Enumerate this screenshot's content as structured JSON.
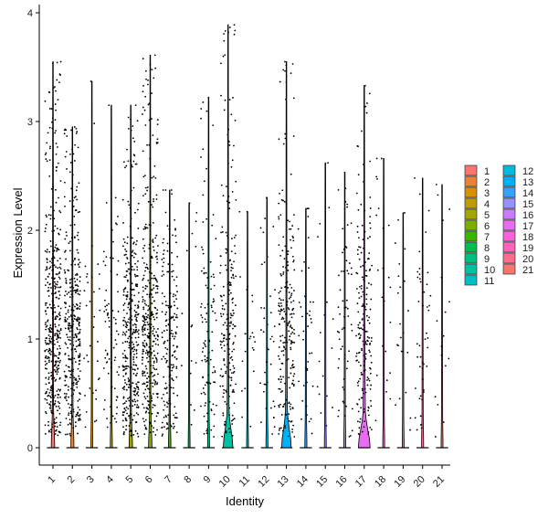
{
  "chart_data": {
    "type": "violin",
    "title": "",
    "xlabel": "Identity",
    "ylabel": "Expression Level",
    "ylim": [
      0,
      4
    ],
    "yticks": [
      "0",
      "1",
      "2",
      "3",
      "4"
    ],
    "categories": [
      "1",
      "2",
      "3",
      "4",
      "5",
      "6",
      "7",
      "8",
      "9",
      "10",
      "11",
      "12",
      "13",
      "14",
      "15",
      "16",
      "17",
      "18",
      "19",
      "20",
      "21"
    ],
    "max_values": [
      3.55,
      2.95,
      3.37,
      3.15,
      3.15,
      3.61,
      2.37,
      2.25,
      3.22,
      3.89,
      2.17,
      2.3,
      3.55,
      2.2,
      2.62,
      2.53,
      3.33,
      2.66,
      2.16,
      2.48,
      2.42
    ],
    "expressing_fraction": [
      0.72,
      0.58,
      0.05,
      0.12,
      0.62,
      0.64,
      0.3,
      0.02,
      0.18,
      0.35,
      0.03,
      0.06,
      0.38,
      0.06,
      0.02,
      0.1,
      0.32,
      0.03,
      0.03,
      0.07,
      0.02
    ],
    "violin_peak_width": [
      0.12,
      0.1,
      0.04,
      0.05,
      0.12,
      0.12,
      0.07,
      0.04,
      0.05,
      0.44,
      0.04,
      0.05,
      0.44,
      0.05,
      0.04,
      0.05,
      0.55,
      0.04,
      0.04,
      0.05,
      0.04
    ],
    "colors": [
      "#F8766D",
      "#EA8331",
      "#D89000",
      "#C09B00",
      "#A3A500",
      "#7CAE00",
      "#39B600",
      "#00BB4E",
      "#00BF7D",
      "#00C1A3",
      "#00BFC4",
      "#00BAE0",
      "#00B0F6",
      "#35A2FF",
      "#9590FF",
      "#C77CFF",
      "#E76BF3",
      "#FA62DB",
      "#FF62BC",
      "#FF6C91",
      "#F8766D"
    ],
    "legend_position": "right",
    "grid": false
  }
}
